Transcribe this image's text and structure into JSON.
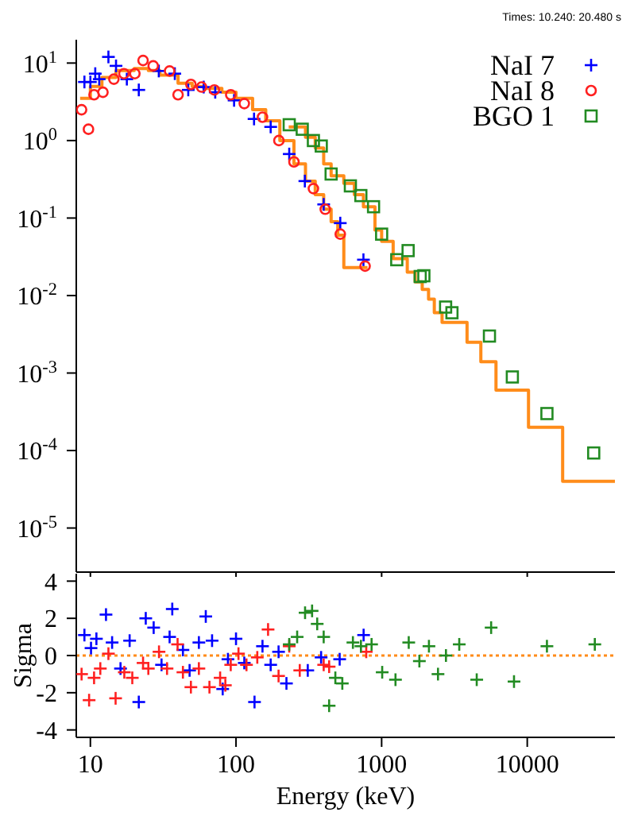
{
  "chart_data": [
    {
      "type": "scatter",
      "log": "xy",
      "legend": "top right",
      "tick_labels": "y",
      "annotations": [
        "Times: 10.240: 20.480 s"
      ],
      "xlim": [
        8,
        40000
      ],
      "xticks": [
        10,
        100,
        1000,
        10000
      ],
      "ylim": [
        2.7e-06,
        20
      ],
      "yticks": [
        {
          "value": 10,
          "label": "10$^{1}$"
        },
        {
          "value": 1,
          "label": "10$^{0}$"
        },
        {
          "value": 0.1,
          "label": "10$^{-1}$"
        },
        {
          "value": 0.01,
          "label": "10$^{-2}$"
        },
        {
          "value": 0.001,
          "label": "10$^{-3}$"
        },
        {
          "value": 0.0001,
          "label": "10$^{-4}$"
        },
        {
          "value": 1e-05,
          "label": "10$^{-5}$"
        }
      ],
      "series": [
        {
          "name": "NaI 7",
          "color": "#0000ff",
          "marker": "cross",
          "x": [
            9.1,
            10,
            10.8,
            11.5,
            13.3,
            15,
            17.8,
            21.5,
            29.5,
            38,
            47,
            60,
            72,
            97,
            133,
            173,
            232,
            297,
            400,
            520,
            750
          ],
          "values": [
            5.7,
            5.7,
            7.3,
            6.2,
            12,
            9.2,
            6.2,
            4.5,
            7.9,
            7.3,
            4.5,
            4.9,
            4.2,
            3.3,
            1.9,
            1.5,
            0.67,
            0.3,
            0.15,
            0.086,
            0.029
          ]
        },
        {
          "name": "NaI 8",
          "color": "#ff2020",
          "marker": "circle",
          "x": [
            8.7,
            9.7,
            10.6,
            12.2,
            14.5,
            17,
            20.2,
            23,
            27,
            35,
            40,
            49,
            58,
            71,
            92,
            114,
            152,
            197,
            250,
            340,
            410,
            520,
            770
          ],
          "values": [
            2.5,
            1.4,
            3.9,
            4.2,
            6.2,
            7.3,
            7.3,
            10.8,
            9.2,
            7.9,
            3.9,
            5.3,
            4.9,
            4.5,
            3.9,
            3,
            2,
            1,
            0.53,
            0.24,
            0.13,
            0.062,
            0.024
          ]
        },
        {
          "name": "BGO 1",
          "color": "#228b22",
          "marker": "square",
          "x": [
            232,
            285,
            340,
            385,
            450,
            610,
            720,
            880,
            1000,
            1270,
            1520,
            1840,
            1950,
            2750,
            3040,
            5500,
            7900,
            13650,
            28600
          ],
          "values": [
            1.6,
            1.4,
            1,
            0.85,
            0.37,
            0.26,
            0.195,
            0.14,
            0.062,
            0.029,
            0.038,
            0.0176,
            0.018,
            0.0071,
            0.006,
            0.003,
            0.00089,
            0.0003,
            9.3e-05
          ]
        },
        {
          "type": "step",
          "color": "#ff8c1a",
          "x": [
            8.5,
            10,
            12,
            15,
            20,
            25,
            30,
            40,
            50,
            60,
            80,
            100,
            130,
            160,
            200,
            250,
            300,
            350,
            400,
            450,
            500,
            550,
            800
          ],
          "values": [
            3.5,
            5,
            6.5,
            8,
            8.5,
            8,
            7,
            5.5,
            5,
            4.7,
            4.2,
            3.5,
            2.5,
            1.8,
            1,
            0.5,
            0.3,
            0.2,
            0.13,
            0.09,
            0.06,
            0.023,
            0.023
          ]
        },
        {
          "type": "step",
          "color": "#ff8c1a",
          "x": [
            230,
            300,
            350,
            400,
            450,
            550,
            650,
            750,
            900,
            1000,
            1200,
            1500,
            1700,
            1900,
            2100,
            2300,
            2600,
            3860,
            4800,
            6100,
            10200,
            17500,
            40000
          ],
          "values": [
            1.5,
            1.1,
            0.8,
            0.5,
            0.35,
            0.28,
            0.2,
            0.14,
            0.07,
            0.05,
            0.03,
            0.02,
            0.015,
            0.012,
            0.009,
            0.006,
            0.0045,
            0.0025,
            0.0014,
            0.0006,
            0.0002,
            4e-05,
            4e-05
          ]
        }
      ]
    },
    {
      "type": "scatter",
      "log": "x",
      "xlabel": "Energy (keV)",
      "ylabel": "Sigma",
      "xlim": [
        8,
        40000
      ],
      "xticks": [
        10,
        100,
        1000,
        10000
      ],
      "ylim": [
        -4.4,
        4.4
      ],
      "yticks": [
        -4,
        -2,
        0,
        2,
        4
      ],
      "ref_lines": [
        {
          "axis": "y",
          "value": 0,
          "color": "#ff8c1a",
          "line_style": "dotted"
        }
      ],
      "series": [
        {
          "color": "#0000ff",
          "marker": "cross",
          "x": [
            9.1,
            10.1,
            11,
            12.8,
            14.1,
            16.1,
            18.6,
            21.5,
            24,
            27.2,
            30.8,
            35,
            36.5,
            43.2,
            48,
            55.6,
            62,
            68.5,
            81,
            88,
            100,
            114,
            134,
            152,
            173,
            196,
            222,
            311,
            384,
            515,
            752
          ],
          "values": [
            1.1,
            0.4,
            0.9,
            2.2,
            0.7,
            -0.7,
            0.8,
            -2.5,
            2,
            1.5,
            -0.5,
            1,
            2.5,
            0.3,
            -0.8,
            0.7,
            2.1,
            0.8,
            -1.8,
            -0.2,
            0.9,
            -0.4,
            -2.5,
            0.5,
            -0.5,
            0.2,
            -1.5,
            -0.8,
            -0.1,
            -0.2,
            1.1
          ]
        },
        {
          "color": "#ff2020",
          "marker": "cross",
          "x": [
            8.7,
            9.8,
            10.6,
            11.7,
            13.3,
            14.9,
            17.1,
            19.4,
            23,
            25,
            29.6,
            33.6,
            39.7,
            43.2,
            49,
            55.6,
            65.7,
            77.8,
            84.5,
            92,
            104,
            118,
            140,
            166,
            196,
            232,
            274,
            400,
            436,
            784
          ],
          "values": [
            -1,
            -2.4,
            -1.2,
            -0.7,
            0.1,
            -2.3,
            -0.9,
            -1.2,
            -0.4,
            -0.7,
            0.2,
            -0.7,
            0.6,
            -0.9,
            -1.7,
            -0.7,
            -1.7,
            -1.2,
            -1.6,
            -0.5,
            0.1,
            -0.5,
            -0.1,
            1.4,
            -1.1,
            0.5,
            -0.8,
            -0.5,
            -0.6,
            0.2
          ]
        },
        {
          "color": "#228b22",
          "marker": "cross",
          "x": [
            232,
            263,
            298,
            333,
            361,
            400,
            436,
            481,
            537,
            635,
            721,
            853,
            1009,
            1245,
            1535,
            1816,
            2113,
            2438,
            2765,
            3412,
            4498,
            5649,
            8110,
            13650,
            29100
          ],
          "values": [
            0.6,
            1,
            2.3,
            2.4,
            1.7,
            1,
            -2.7,
            -1.2,
            -1.5,
            0.7,
            0.5,
            0.6,
            -0.9,
            -1.3,
            0.7,
            -0.3,
            0.5,
            -1,
            0,
            0.6,
            -1.3,
            1.5,
            -1.4,
            0.5,
            0.6
          ]
        }
      ]
    }
  ]
}
